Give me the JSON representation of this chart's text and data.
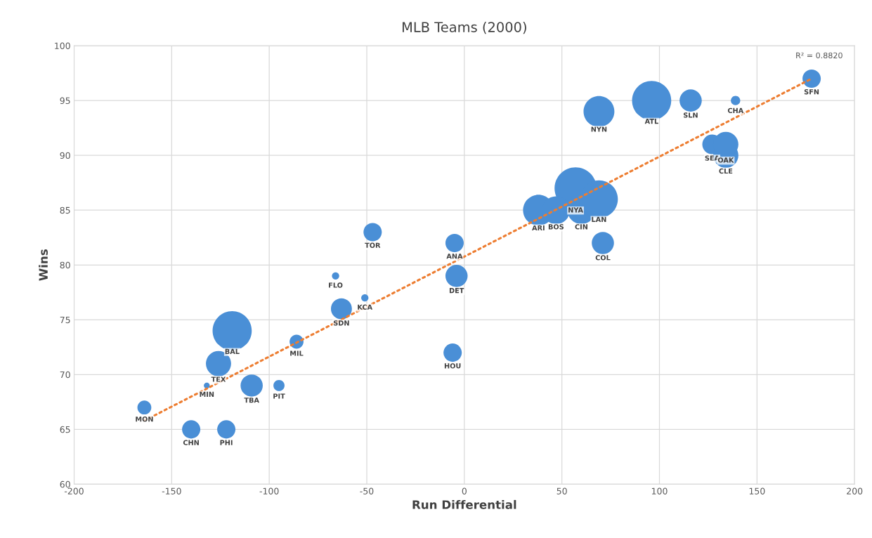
{
  "chart_data": {
    "type": "bubble",
    "title": "MLB Teams (2000)",
    "xlabel": "Run Differential",
    "ylabel": "Wins",
    "xlim": [
      -200,
      200
    ],
    "xticks": [
      -200,
      -150,
      -100,
      -50,
      0,
      50,
      100,
      150,
      200
    ],
    "ylim": [
      60,
      100
    ],
    "yticks": [
      60,
      65,
      70,
      75,
      80,
      85,
      90,
      95,
      100
    ],
    "grid": true,
    "legend": false,
    "series": [
      {
        "color": "#4a8fd6",
        "x": [
          178,
          96,
          116,
          139,
          69,
          127,
          134,
          134,
          57,
          38,
          47,
          60,
          69,
          71,
          -47,
          -5,
          -4,
          -66,
          -51,
          -63,
          -6,
          -86,
          -119,
          -126,
          -132,
          -109,
          -95,
          -164,
          -140,
          -122
        ],
        "values": [
          97,
          95,
          95,
          95,
          94,
          91,
          90,
          91,
          87,
          85,
          85,
          85,
          86,
          82,
          83,
          82,
          79,
          79,
          77,
          76,
          72,
          73,
          74,
          71,
          69,
          69,
          69,
          67,
          65,
          65
        ],
        "sizes": [
          0.19,
          0.87,
          0.28,
          0.05,
          0.54,
          0.22,
          0.36,
          0.36,
          1.0,
          0.54,
          0.44,
          0.44,
          0.81,
          0.28,
          0.19,
          0.19,
          0.28,
          0.03,
          0.03,
          0.25,
          0.19,
          0.11,
          0.87,
          0.36,
          0.02,
          0.28,
          0.07,
          0.11,
          0.19,
          0.19
        ]
      },
      {
        "type": "line",
        "color": "#ed7d31",
        "line_style": "dotted",
        "x": [
          -164,
          178
        ],
        "values": [
          65.8,
          97.0
        ]
      }
    ],
    "annotations": [
      {
        "text": "SFN",
        "x": 178,
        "y": 97
      },
      {
        "text": "ATL",
        "x": 96,
        "y": 95
      },
      {
        "text": "SLN",
        "x": 116,
        "y": 95
      },
      {
        "text": "CHA",
        "x": 139,
        "y": 95
      },
      {
        "text": "NYN",
        "x": 69,
        "y": 94
      },
      {
        "text": "SEA",
        "x": 127,
        "y": 91
      },
      {
        "text": "CLE",
        "x": 134,
        "y": 90
      },
      {
        "text": "OAK",
        "x": 134,
        "y": 91
      },
      {
        "text": "NYA",
        "x": 57,
        "y": 87
      },
      {
        "text": "ARI",
        "x": 38,
        "y": 85
      },
      {
        "text": "BOS",
        "x": 47,
        "y": 85
      },
      {
        "text": "CIN",
        "x": 60,
        "y": 85
      },
      {
        "text": "LAN",
        "x": 69,
        "y": 86
      },
      {
        "text": "COL",
        "x": 71,
        "y": 82
      },
      {
        "text": "TOR",
        "x": -47,
        "y": 83
      },
      {
        "text": "ANA",
        "x": -5,
        "y": 82
      },
      {
        "text": "DET",
        "x": -4,
        "y": 79
      },
      {
        "text": "FLO",
        "x": -66,
        "y": 79
      },
      {
        "text": "KCA",
        "x": -51,
        "y": 77
      },
      {
        "text": "SDN",
        "x": -63,
        "y": 76
      },
      {
        "text": "HOU",
        "x": -6,
        "y": 72
      },
      {
        "text": "MIL",
        "x": -86,
        "y": 73
      },
      {
        "text": "BAL",
        "x": -119,
        "y": 74
      },
      {
        "text": "TEX",
        "x": -126,
        "y": 71
      },
      {
        "text": "MIN",
        "x": -132,
        "y": 69
      },
      {
        "text": "TBA",
        "x": -109,
        "y": 69
      },
      {
        "text": "PIT",
        "x": -95,
        "y": 69
      },
      {
        "text": "MON",
        "x": -164,
        "y": 67
      },
      {
        "text": "CHN",
        "x": -140,
        "y": 65
      },
      {
        "text": "PHI",
        "x": -122,
        "y": 65
      },
      "R² = 0.8820"
    ]
  }
}
